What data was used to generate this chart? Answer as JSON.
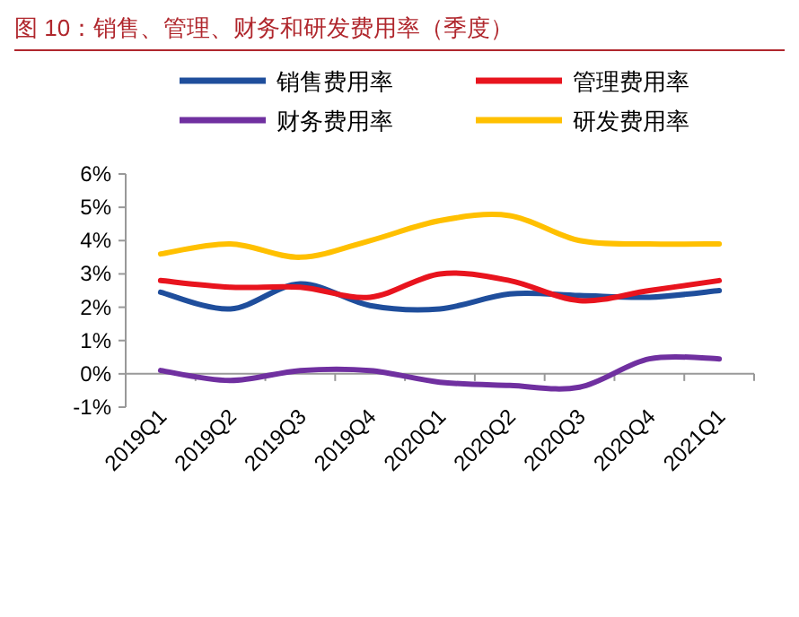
{
  "chart_data": {
    "type": "line",
    "title": "图 10：销售、管理、财务和研发费用率（季度）",
    "categories": [
      "2019Q1",
      "2019Q2",
      "2019Q3",
      "2019Q4",
      "2020Q1",
      "2020Q2",
      "2020Q3",
      "2020Q4",
      "2021Q1"
    ],
    "series": [
      {
        "name": "销售费用率",
        "color": "#1f4e9c",
        "values": [
          2.45,
          1.95,
          2.7,
          2.05,
          1.95,
          2.4,
          2.35,
          2.3,
          2.5
        ]
      },
      {
        "name": "管理费用率",
        "color": "#e8141e",
        "values": [
          2.8,
          2.6,
          2.6,
          2.3,
          3.0,
          2.8,
          2.2,
          2.5,
          2.8
        ]
      },
      {
        "name": "财务费用率",
        "color": "#7030a0",
        "values": [
          0.1,
          -0.2,
          0.1,
          0.1,
          -0.25,
          -0.35,
          -0.4,
          0.45,
          0.45
        ]
      },
      {
        "name": "研发费用率",
        "color": "#ffc000",
        "values": [
          3.6,
          3.9,
          3.5,
          4.0,
          4.6,
          4.75,
          4.0,
          3.9,
          3.9
        ]
      }
    ],
    "ylim": [
      -1,
      6
    ],
    "yticks": [
      {
        "value": -1,
        "label": "-1%"
      },
      {
        "value": 0,
        "label": "0%"
      },
      {
        "value": 1,
        "label": "1%"
      },
      {
        "value": 2,
        "label": "2%"
      },
      {
        "value": 3,
        "label": "3%"
      },
      {
        "value": 4,
        "label": "4%"
      },
      {
        "value": 5,
        "label": "5%"
      },
      {
        "value": 6,
        "label": "6%"
      }
    ],
    "legend": "top",
    "grid": false,
    "marker": "none",
    "line_style": "solid"
  }
}
